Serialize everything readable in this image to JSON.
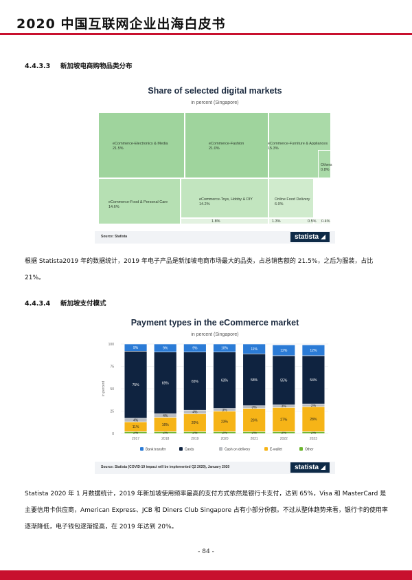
{
  "header": {
    "title": "2020 中国互联网企业出海白皮书"
  },
  "section1": {
    "number": "4.4.3.3",
    "title": "新加坡电商购物品类分布"
  },
  "treemap": {
    "title": "Share of selected digital markets",
    "subtitle": "in percent (Singapore)",
    "source": "Source: Statista",
    "brand": "statista",
    "cells": [
      {
        "name": "eCommerce-Electronics & Media",
        "pct": "21.5%"
      },
      {
        "name": "eCommerce-Fashion",
        "pct": "21.0%"
      },
      {
        "name": "eCommerce-Furniture & Appliances",
        "pct": "15.3%"
      },
      {
        "name": "Others",
        "pct": "0.8%"
      },
      {
        "name": "eCommerce-Food & Personal Care",
        "pct": "14.6%"
      },
      {
        "name": "eCommerce-Toys, Hobby & DIY",
        "pct": "14.2%"
      },
      {
        "name": "Online Food Delivery",
        "pct": "6.0%"
      },
      {
        "name": "",
        "pct": "1.8%"
      },
      {
        "name": "",
        "pct": "1.3%"
      },
      {
        "name": "",
        "pct": "0.5%"
      },
      {
        "name": "",
        "pct": "0.4%"
      }
    ]
  },
  "paragraph1": "根据 Statista2019 年的数据统计，2019 年电子产品是新加坡电商市场最大的品类，占总销售额的 21.5%，之后为服装，占比 21%。",
  "section2": {
    "number": "4.4.3.4",
    "title": "新加坡支付模式"
  },
  "payments": {
    "title": "Payment types in the eCommerce market",
    "subtitle": "in percent (Singapore)",
    "source": "Source: Statista (COVID-19 impact will be implemented Q2 2020), January 2020",
    "brand": "statista",
    "colors": {
      "Bank transfer": "#2b7bd6",
      "Cards": "#0f2340",
      "Cash on delivery": "#b9bcc1",
      "E-wallet": "#f6b417",
      "Other": "#6cb52d"
    }
  },
  "paragraph2": "Statista 2020 年 1 月数据统计，2019 年新加坡使用频率最高的支付方式依然是银行卡支付，达到 65%，Visa 和 MasterCard 是主要信用卡供应商，American Express、JCB 和 Diners Club Singapore 占有小部分份额。不过从整体趋势来看，银行卡的使用率逐渐降低，电子钱包逐渐提高，在 2019 年达到 20%。",
  "page_number": "- 84 -",
  "chart_data": [
    {
      "type": "treemap",
      "title": "Share of selected digital markets",
      "subtitle": "in percent (Singapore)",
      "categories": [
        "eCommerce-Electronics & Media",
        "eCommerce-Fashion",
        "eCommerce-Furniture & Appliances",
        "Others",
        "eCommerce-Food & Personal Care",
        "eCommerce-Toys, Hobby & DIY",
        "Online Food Delivery",
        "",
        "",
        "",
        ""
      ],
      "values": [
        21.5,
        21.0,
        15.3,
        0.8,
        14.6,
        14.2,
        6.0,
        1.8,
        1.3,
        0.5,
        0.4
      ]
    },
    {
      "type": "bar",
      "stacked": true,
      "title": "Payment types in the eCommerce market",
      "subtitle": "in percent (Singapore)",
      "ylabel": "in percent",
      "ylim": [
        0,
        100
      ],
      "yticks": [
        0,
        25,
        50,
        75,
        100
      ],
      "categories": [
        "2017",
        "2018",
        "2019",
        "2020",
        "2021",
        "2022",
        "2023"
      ],
      "legend": "bottom",
      "series": [
        {
          "name": "Other",
          "values": [
            2,
            2,
            2,
            2,
            2,
            2,
            2
          ]
        },
        {
          "name": "E-wallet",
          "values": [
            11,
            16,
            20,
            23,
            26,
            27,
            28
          ]
        },
        {
          "name": "Cash on delivery",
          "values": [
            4,
            4,
            4,
            3,
            3,
            3,
            3
          ]
        },
        {
          "name": "Cards",
          "values": [
            75,
            69,
            65,
            63,
            58,
            55,
            54
          ]
        },
        {
          "name": "Bank transfer",
          "values": [
            9,
            9,
            9,
            10,
            11,
            12,
            12
          ]
        }
      ],
      "labels": [
        [
          "2%",
          "2%",
          "2%",
          "2%",
          "2%",
          "2%",
          "2%"
        ],
        [
          "11%",
          "16%",
          "20%",
          "23%",
          "26%",
          "27%",
          "28%"
        ],
        [
          "4%",
          "4%",
          "4%",
          "3%",
          "3%",
          "3%",
          "3%"
        ],
        [
          "75%",
          "69%",
          "65%",
          "63%",
          "58%",
          "55%",
          "54%"
        ],
        [
          "9%",
          "9%",
          "9%",
          "10%",
          "11%",
          "12%",
          "12%"
        ]
      ]
    }
  ]
}
